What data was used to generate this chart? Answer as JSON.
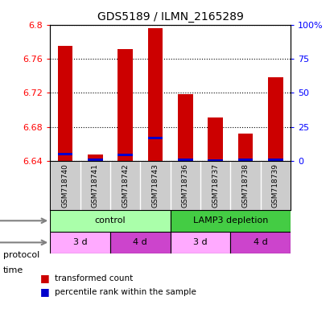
{
  "title": "GDS5189 / ILMN_2165289",
  "samples": [
    "GSM718740",
    "GSM718741",
    "GSM718742",
    "GSM718743",
    "GSM718736",
    "GSM718737",
    "GSM718738",
    "GSM718739"
  ],
  "red_values": [
    6.775,
    6.647,
    6.771,
    6.796,
    6.718,
    6.691,
    6.672,
    6.738
  ],
  "blue_values": [
    6.648,
    6.641,
    6.647,
    6.667,
    6.641,
    6.64,
    6.641,
    6.641
  ],
  "ylim_left": [
    6.64,
    6.8
  ],
  "ylim_right": [
    0,
    100
  ],
  "yticks_left": [
    6.64,
    6.68,
    6.72,
    6.76,
    6.8
  ],
  "yticks_right": [
    0,
    25,
    50,
    75,
    100
  ],
  "ytick_labels_right": [
    "0",
    "25",
    "50",
    "75",
    "100%"
  ],
  "protocol_groups": [
    {
      "label": "control",
      "start": 0,
      "end": 4,
      "color": "#aaffaa"
    },
    {
      "label": "LAMP3 depletion",
      "start": 4,
      "end": 8,
      "color": "#44cc44"
    }
  ],
  "time_groups": [
    {
      "label": "3 d",
      "start": 0,
      "end": 2,
      "color": "#ffaaff"
    },
    {
      "label": "4 d",
      "start": 2,
      "end": 4,
      "color": "#cc44cc"
    },
    {
      "label": "3 d",
      "start": 4,
      "end": 6,
      "color": "#ffaaff"
    },
    {
      "label": "4 d",
      "start": 6,
      "end": 8,
      "color": "#cc44cc"
    }
  ],
  "legend_items": [
    {
      "color": "#cc0000",
      "label": "transformed count"
    },
    {
      "color": "#0000cc",
      "label": "percentile rank within the sample"
    }
  ],
  "bar_color": "#cc0000",
  "blue_color": "#0000cc",
  "bar_width": 0.5,
  "sample_bg_color": "#cccccc"
}
